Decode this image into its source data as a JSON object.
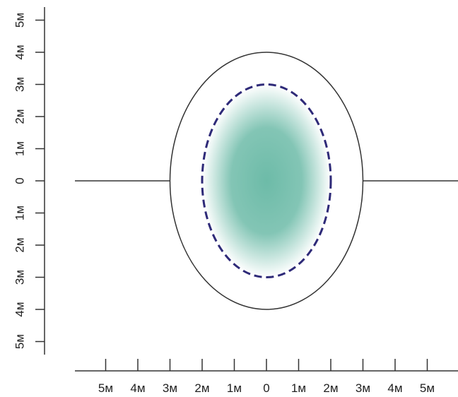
{
  "diagram": {
    "colors": {
      "axis": "#333333",
      "outer_ellipse": "#333333",
      "inner_ellipse_dash": "#2e2a78",
      "fill_center": "#6dbba8",
      "background": "#ffffff"
    },
    "x_axis": {
      "tick_labels": [
        "5м",
        "4м",
        "3м",
        "2м",
        "1м",
        "0",
        "1м",
        "2м",
        "3м",
        "4м",
        "5м"
      ]
    },
    "y_axis": {
      "tick_labels": [
        "5м",
        "4м",
        "3м",
        "2м",
        "1м",
        "0",
        "1м",
        "2м",
        "3м",
        "4м",
        "5м"
      ]
    },
    "outer_ellipse": {
      "semi_axis_x_m": 3,
      "semi_axis_y_m": 4
    },
    "inner_ellipse": {
      "semi_axis_x_m": 2,
      "semi_axis_y_m": 3,
      "style": "dashed",
      "fill": "radial-gradient"
    },
    "horizontal_line": {
      "from_x_m": -6,
      "to_x_m": 6,
      "y_m": 0
    }
  }
}
